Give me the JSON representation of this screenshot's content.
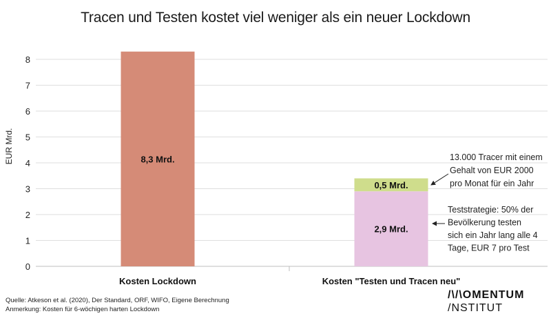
{
  "title": "Tracen und Testen kostet viel weniger als ein neuer Lockdown",
  "source_line": "Quelle: Atkeson et al. (2020), Der Standard, ORF, WIFO, Eigene Berechnung",
  "note_line": "Anmerkung: Kosten für 6-wöchigen harten Lockdown",
  "logo": {
    "line1": "/\\/\\OMENTUM",
    "line2": "/NSTITUT"
  },
  "chart_data": {
    "type": "bar",
    "stacked": true,
    "ylabel": "EUR Mrd.",
    "ylim": [
      0,
      8.8
    ],
    "yticks": [
      0,
      1,
      2,
      3,
      4,
      5,
      6,
      7,
      8
    ],
    "categories": [
      "Kosten Lockdown",
      "Kosten \"Testen und Tracen neu\""
    ],
    "bars": [
      {
        "category": "Kosten Lockdown",
        "segments": [
          {
            "value": 8.3,
            "label": "8,3 Mrd.",
            "color": "#d58b77"
          }
        ]
      },
      {
        "category": "Kosten \"Testen und Tracen neu\"",
        "segments": [
          {
            "value": 2.9,
            "label": "2,9 Mrd.",
            "color": "#e7c4e1"
          },
          {
            "value": 0.5,
            "label": "0,5 Mrd.",
            "color": "#cfdd8c"
          }
        ]
      }
    ],
    "annotations": [
      {
        "target": "0,5 Mrd.",
        "lines": [
          "13.000 Tracer mit einem",
          "Gehalt von EUR 2000",
          "pro Monat für ein Jahr"
        ]
      },
      {
        "target": "2,9 Mrd.",
        "lines": [
          "Teststrategie: 50% der",
          "Bevölkerung testen",
          "sich ein Jahr lang alle 4",
          "Tage, EUR 7 pro Test"
        ]
      }
    ],
    "grid": true,
    "legend": "none"
  }
}
